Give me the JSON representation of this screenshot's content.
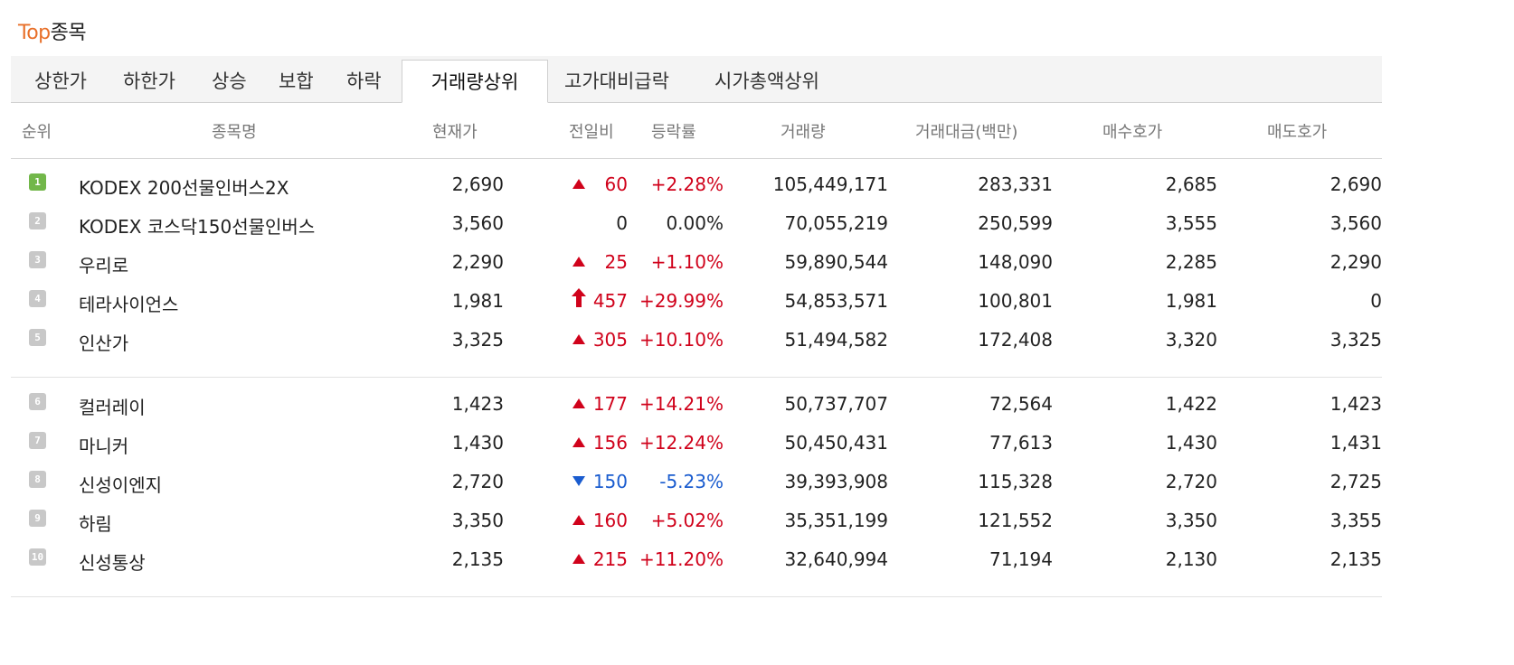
{
  "title": {
    "accent": "Top",
    "rest": "종목"
  },
  "tabs": [
    "상한가",
    "하한가",
    "상승",
    "보합",
    "하락",
    "거래량상위",
    "고가대비급락",
    "시가총액상위"
  ],
  "active_tab": "거래량상위",
  "columns": [
    "순위",
    "종목명",
    "현재가",
    "전일비",
    "등락률",
    "거래량",
    "거래대금(백만)",
    "매수호가",
    "매도호가"
  ],
  "rows": [
    {
      "rank": "1",
      "name": "KODEX 200선물인버스2X",
      "price": "2,690",
      "dir": "up",
      "change": "60",
      "rate": "+2.28%",
      "volume": "105,449,171",
      "amount": "283,331",
      "bid": "2,685",
      "ask": "2,690"
    },
    {
      "rank": "2",
      "name": "KODEX 코스닥150선물인버스",
      "price": "3,560",
      "dir": "flat",
      "change": "0",
      "rate": "0.00%",
      "volume": "70,055,219",
      "amount": "250,599",
      "bid": "3,555",
      "ask": "3,560"
    },
    {
      "rank": "3",
      "name": "우리로",
      "price": "2,290",
      "dir": "up",
      "change": "25",
      "rate": "+1.10%",
      "volume": "59,890,544",
      "amount": "148,090",
      "bid": "2,285",
      "ask": "2,290"
    },
    {
      "rank": "4",
      "name": "테라사이언스",
      "price": "1,981",
      "dir": "limit-up",
      "change": "457",
      "rate": "+29.99%",
      "volume": "54,853,571",
      "amount": "100,801",
      "bid": "1,981",
      "ask": "0"
    },
    {
      "rank": "5",
      "name": "인산가",
      "price": "3,325",
      "dir": "up",
      "change": "305",
      "rate": "+10.10%",
      "volume": "51,494,582",
      "amount": "172,408",
      "bid": "3,320",
      "ask": "3,325"
    },
    {
      "rank": "6",
      "name": "컬러레이",
      "price": "1,423",
      "dir": "up",
      "change": "177",
      "rate": "+14.21%",
      "volume": "50,737,707",
      "amount": "72,564",
      "bid": "1,422",
      "ask": "1,423"
    },
    {
      "rank": "7",
      "name": "마니커",
      "price": "1,430",
      "dir": "up",
      "change": "156",
      "rate": "+12.24%",
      "volume": "50,450,431",
      "amount": "77,613",
      "bid": "1,430",
      "ask": "1,431"
    },
    {
      "rank": "8",
      "name": "신성이엔지",
      "price": "2,720",
      "dir": "down",
      "change": "150",
      "rate": "-5.23%",
      "volume": "39,393,908",
      "amount": "115,328",
      "bid": "2,720",
      "ask": "2,725"
    },
    {
      "rank": "9",
      "name": "하림",
      "price": "3,350",
      "dir": "up",
      "change": "160",
      "rate": "+5.02%",
      "volume": "35,351,199",
      "amount": "121,552",
      "bid": "3,350",
      "ask": "3,355"
    },
    {
      "rank": "10",
      "name": "신성통상",
      "price": "2,135",
      "dir": "up",
      "change": "215",
      "rate": "+11.20%",
      "volume": "32,640,994",
      "amount": "71,194",
      "bid": "2,130",
      "ask": "2,135"
    }
  ],
  "colors": {
    "accent": "#e8702a",
    "up": "#d0021b",
    "down": "#1a5ccf",
    "rank_first": "#72b74a",
    "rank_other": "#c8c8c8"
  },
  "icons": {
    "up": "triangle-up-icon",
    "down": "triangle-down-icon",
    "limit-up": "arrow-up-icon"
  }
}
